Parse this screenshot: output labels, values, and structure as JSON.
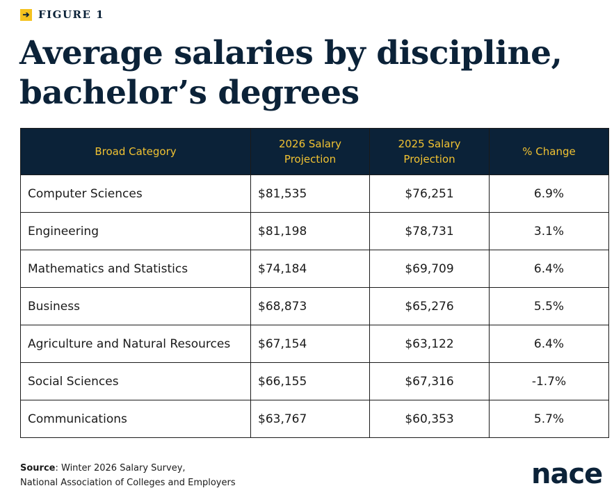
{
  "figure_label": "FIGURE 1",
  "title_line1": "Average salaries by discipline,",
  "title_line2": "bachelor’s degrees",
  "chart_data": {
    "type": "table",
    "title": "Average salaries by discipline, bachelor’s degrees",
    "columns": [
      "Broad Category",
      "2026 Salary Projection",
      "2025 Salary Projection",
      "% Change"
    ],
    "rows": [
      {
        "category": "Computer Sciences",
        "y2026": "$81,535",
        "y2025": "$76,251",
        "change": "6.9%"
      },
      {
        "category": "Engineering",
        "y2026": "$81,198",
        "y2025": "$78,731",
        "change": "3.1%"
      },
      {
        "category": "Mathematics and Statistics",
        "y2026": "$74,184",
        "y2025": "$69,709",
        "change": "6.4%"
      },
      {
        "category": "Business",
        "y2026": "$68,873",
        "y2025": "$65,276",
        "change": "5.5%"
      },
      {
        "category": "Agriculture and Natural Resources",
        "y2026": "$67,154",
        "y2025": "$63,122",
        "change": "6.4%"
      },
      {
        "category": "Social Sciences",
        "y2026": "$66,155",
        "y2025": "$67,316",
        "change": "-1.7%"
      },
      {
        "category": "Communications",
        "y2026": "$63,767",
        "y2025": "$60,353",
        "change": "5.7%"
      }
    ]
  },
  "source": {
    "label": "Source",
    "line1": ": Winter 2026 Salary Survey,",
    "line2": "National Association of Colleges and Employers"
  },
  "logo_text": "nace",
  "colors": {
    "navy": "#0b2238",
    "gold": "#f1c232"
  }
}
